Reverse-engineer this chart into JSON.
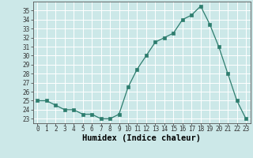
{
  "x": [
    0,
    1,
    2,
    3,
    4,
    5,
    6,
    7,
    8,
    9,
    10,
    11,
    12,
    13,
    14,
    15,
    16,
    17,
    18,
    19,
    20,
    21,
    22,
    23
  ],
  "y": [
    25,
    25,
    24.5,
    24,
    24,
    23.5,
    23.5,
    23,
    23,
    23.5,
    26.5,
    28.5,
    30,
    31.5,
    32,
    32.5,
    34,
    34.5,
    35.5,
    33.5,
    31,
    28,
    25,
    23
  ],
  "xlabel": "Humidex (Indice chaleur)",
  "xlim": [
    -0.5,
    23.5
  ],
  "ylim": [
    22.5,
    36
  ],
  "yticks": [
    23,
    24,
    25,
    26,
    27,
    28,
    29,
    30,
    31,
    32,
    33,
    34,
    35
  ],
  "xticks": [
    0,
    1,
    2,
    3,
    4,
    5,
    6,
    7,
    8,
    9,
    10,
    11,
    12,
    13,
    14,
    15,
    16,
    17,
    18,
    19,
    20,
    21,
    22,
    23
  ],
  "line_color": "#2e7d6e",
  "marker": "s",
  "marker_size": 2.5,
  "background_color": "#cce8e8",
  "grid_color": "#ffffff",
  "tick_fontsize": 5.5,
  "xlabel_fontsize": 7.5
}
